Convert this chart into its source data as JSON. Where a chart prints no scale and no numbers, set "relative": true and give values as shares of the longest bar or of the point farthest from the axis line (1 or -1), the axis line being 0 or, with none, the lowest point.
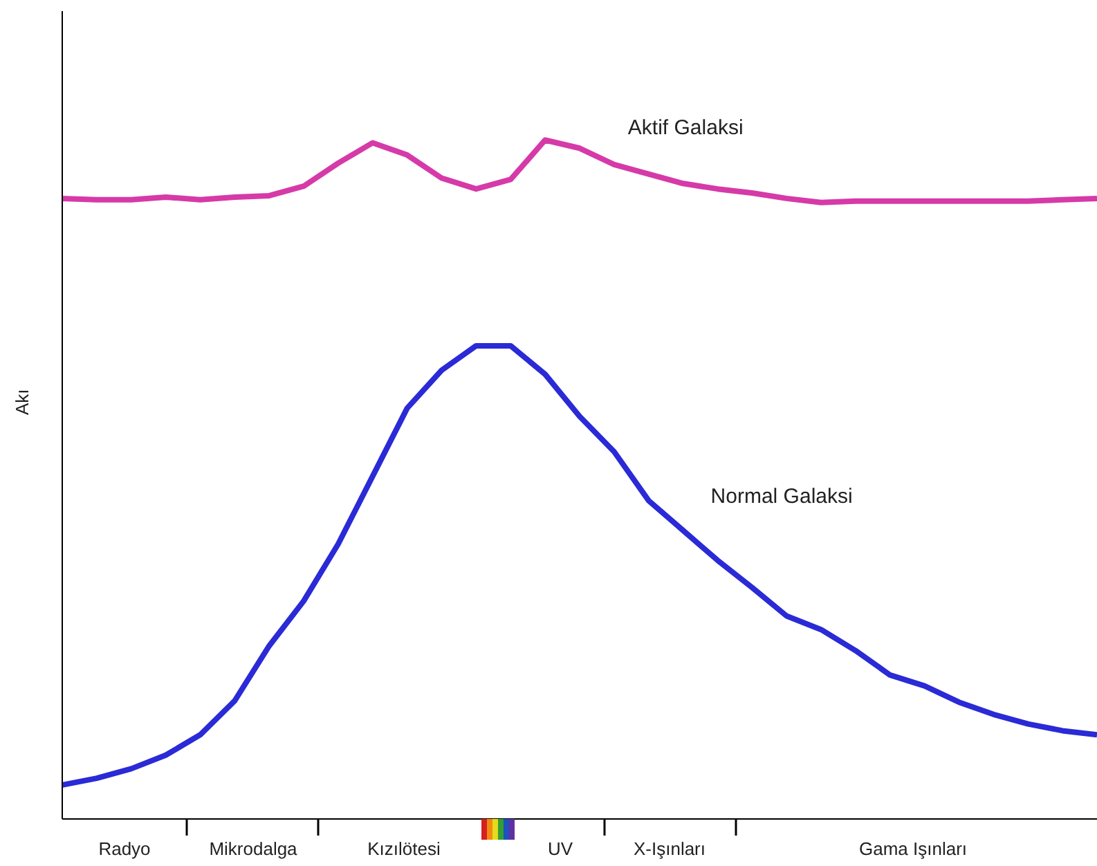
{
  "chart_data": {
    "type": "line",
    "relative": true,
    "ylabel": "Akı",
    "legend": false,
    "categories": [
      null,
      null,
      null,
      null,
      null,
      null,
      null,
      null,
      null,
      null,
      null,
      null,
      null,
      null,
      null,
      null,
      null,
      null,
      null,
      null,
      null,
      null,
      null,
      null,
      null,
      null,
      null,
      null,
      null,
      null,
      null
    ],
    "series": [
      {
        "name": "Aktif Galaksi",
        "color": "#d63aa8",
        "values": [
          0.914,
          0.912,
          0.912,
          0.916,
          0.912,
          0.916,
          0.918,
          0.932,
          0.966,
          0.996,
          0.978,
          0.944,
          0.928,
          0.942,
          1.0,
          0.988,
          0.964,
          0.95,
          0.936,
          0.928,
          0.922,
          0.914,
          0.908,
          0.91,
          0.91,
          0.91,
          0.91,
          0.91,
          0.91,
          0.912,
          0.914
        ]
      },
      {
        "name": "Normal Galaksi",
        "color": "#2a2ad6",
        "values": [
          0.05,
          0.06,
          0.074,
          0.094,
          0.124,
          0.174,
          0.255,
          0.321,
          0.405,
          0.505,
          0.605,
          0.661,
          0.697,
          0.697,
          0.655,
          0.593,
          0.541,
          0.469,
          0.425,
          0.381,
          0.341,
          0.299,
          0.279,
          0.248,
          0.212,
          0.196,
          0.172,
          0.154,
          0.14,
          0.13,
          0.124
        ]
      }
    ],
    "annotations": [
      "Radyo",
      "Mikrodalga",
      "Kızılötesi",
      "UV",
      "X-Işınları",
      "Gama Işınları"
    ]
  }
}
